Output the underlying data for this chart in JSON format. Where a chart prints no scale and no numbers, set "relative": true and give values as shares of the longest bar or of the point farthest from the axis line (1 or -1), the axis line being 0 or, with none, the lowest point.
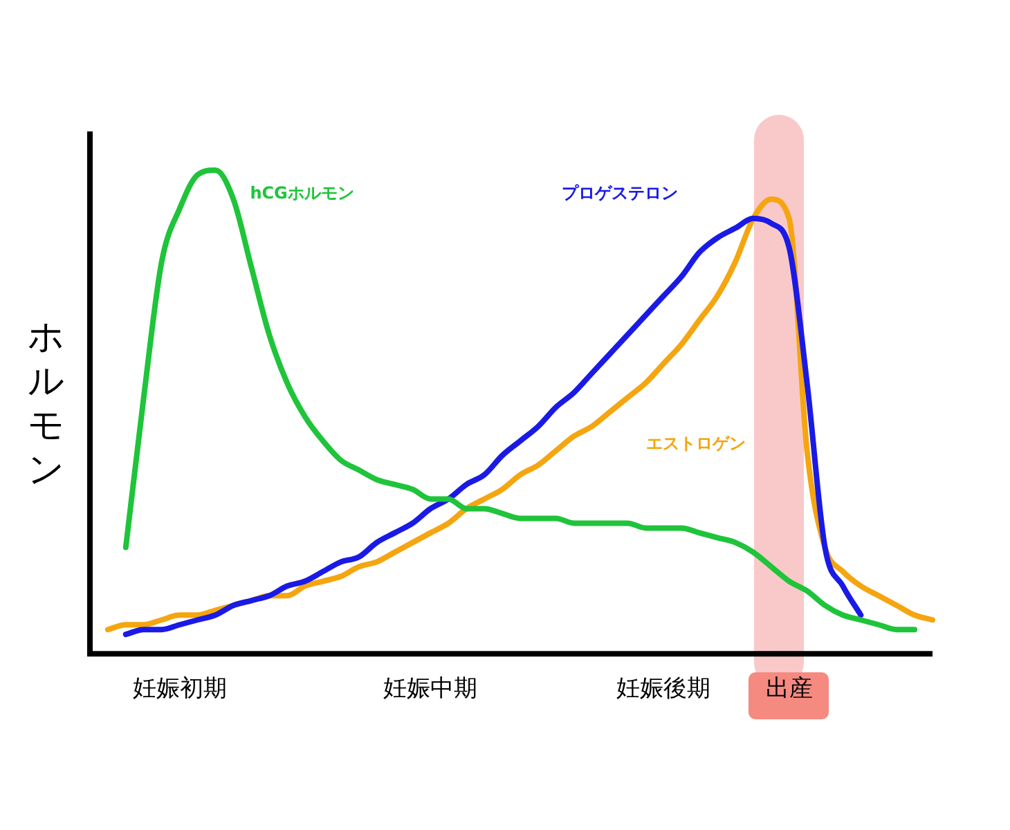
{
  "chart_data": {
    "type": "line",
    "relative": true,
    "ylabel": "ホルモン",
    "legend": false,
    "grid": false,
    "marker": "none",
    "tick_labels": "x",
    "categories": [
      null,
      null,
      null,
      null,
      null,
      "妊娠初期",
      null,
      null,
      null,
      null,
      null,
      null,
      null,
      null,
      null,
      null,
      null,
      null,
      null,
      "妊娠中期",
      null,
      null,
      null,
      null,
      null,
      null,
      null,
      null,
      null,
      null,
      null,
      null,
      "妊娠後期",
      null,
      null,
      null,
      null,
      null,
      null,
      "出産",
      null,
      null,
      null,
      null,
      null,
      null,
      null,
      null
    ],
    "series": [
      {
        "name": "hCGホルモン",
        "color": "#1fc43a",
        "values": [
          null,
          null,
          0.22,
          0.53,
          0.81,
          0.92,
          0.99,
          1,
          0.94,
          0.8,
          0.66,
          0.56,
          0.49,
          0.44,
          0.4,
          0.38,
          0.36,
          0.35,
          0.34,
          0.32,
          0.32,
          0.3,
          0.3,
          0.29,
          0.28,
          0.28,
          0.28,
          0.27,
          0.27,
          0.27,
          0.27,
          0.26,
          0.26,
          0.26,
          0.25,
          0.24,
          0.23,
          0.21,
          0.18,
          0.15,
          0.13,
          0.1,
          0.08,
          0.07,
          0.06,
          0.05,
          0.05,
          null
        ]
      },
      {
        "name": "プロゲステロン",
        "color": "#1a1ae6",
        "values": [
          null,
          null,
          0.04,
          0.05,
          0.05,
          0.06,
          0.07,
          0.08,
          0.1,
          0.11,
          0.12,
          0.14,
          0.15,
          0.17,
          0.19,
          0.2,
          0.23,
          0.25,
          0.27,
          0.3,
          0.32,
          0.35,
          0.37,
          0.41,
          0.44,
          0.47,
          0.51,
          0.54,
          0.58,
          0.62,
          0.66,
          0.7,
          0.74,
          0.78,
          0.83,
          0.86,
          0.88,
          0.9,
          0.89,
          0.84,
          0.56,
          0.22,
          0.14,
          0.08,
          null,
          null,
          null,
          null
        ]
      },
      {
        "name": "エストロゲン",
        "color": "#f5a50f",
        "values": [
          null,
          0.05,
          0.06,
          0.06,
          0.07,
          0.08,
          0.08,
          0.09,
          0.1,
          0.11,
          0.12,
          0.12,
          0.14,
          0.15,
          0.16,
          0.18,
          0.19,
          0.21,
          0.23,
          0.25,
          0.27,
          0.3,
          0.32,
          0.34,
          0.37,
          0.39,
          0.42,
          0.45,
          0.47,
          0.5,
          0.53,
          0.56,
          0.6,
          0.64,
          0.69,
          0.74,
          0.81,
          0.9,
          0.94,
          0.9,
          0.42,
          0.22,
          0.17,
          0.14,
          0.12,
          0.1,
          0.08,
          0.07
        ]
      }
    ]
  }
}
